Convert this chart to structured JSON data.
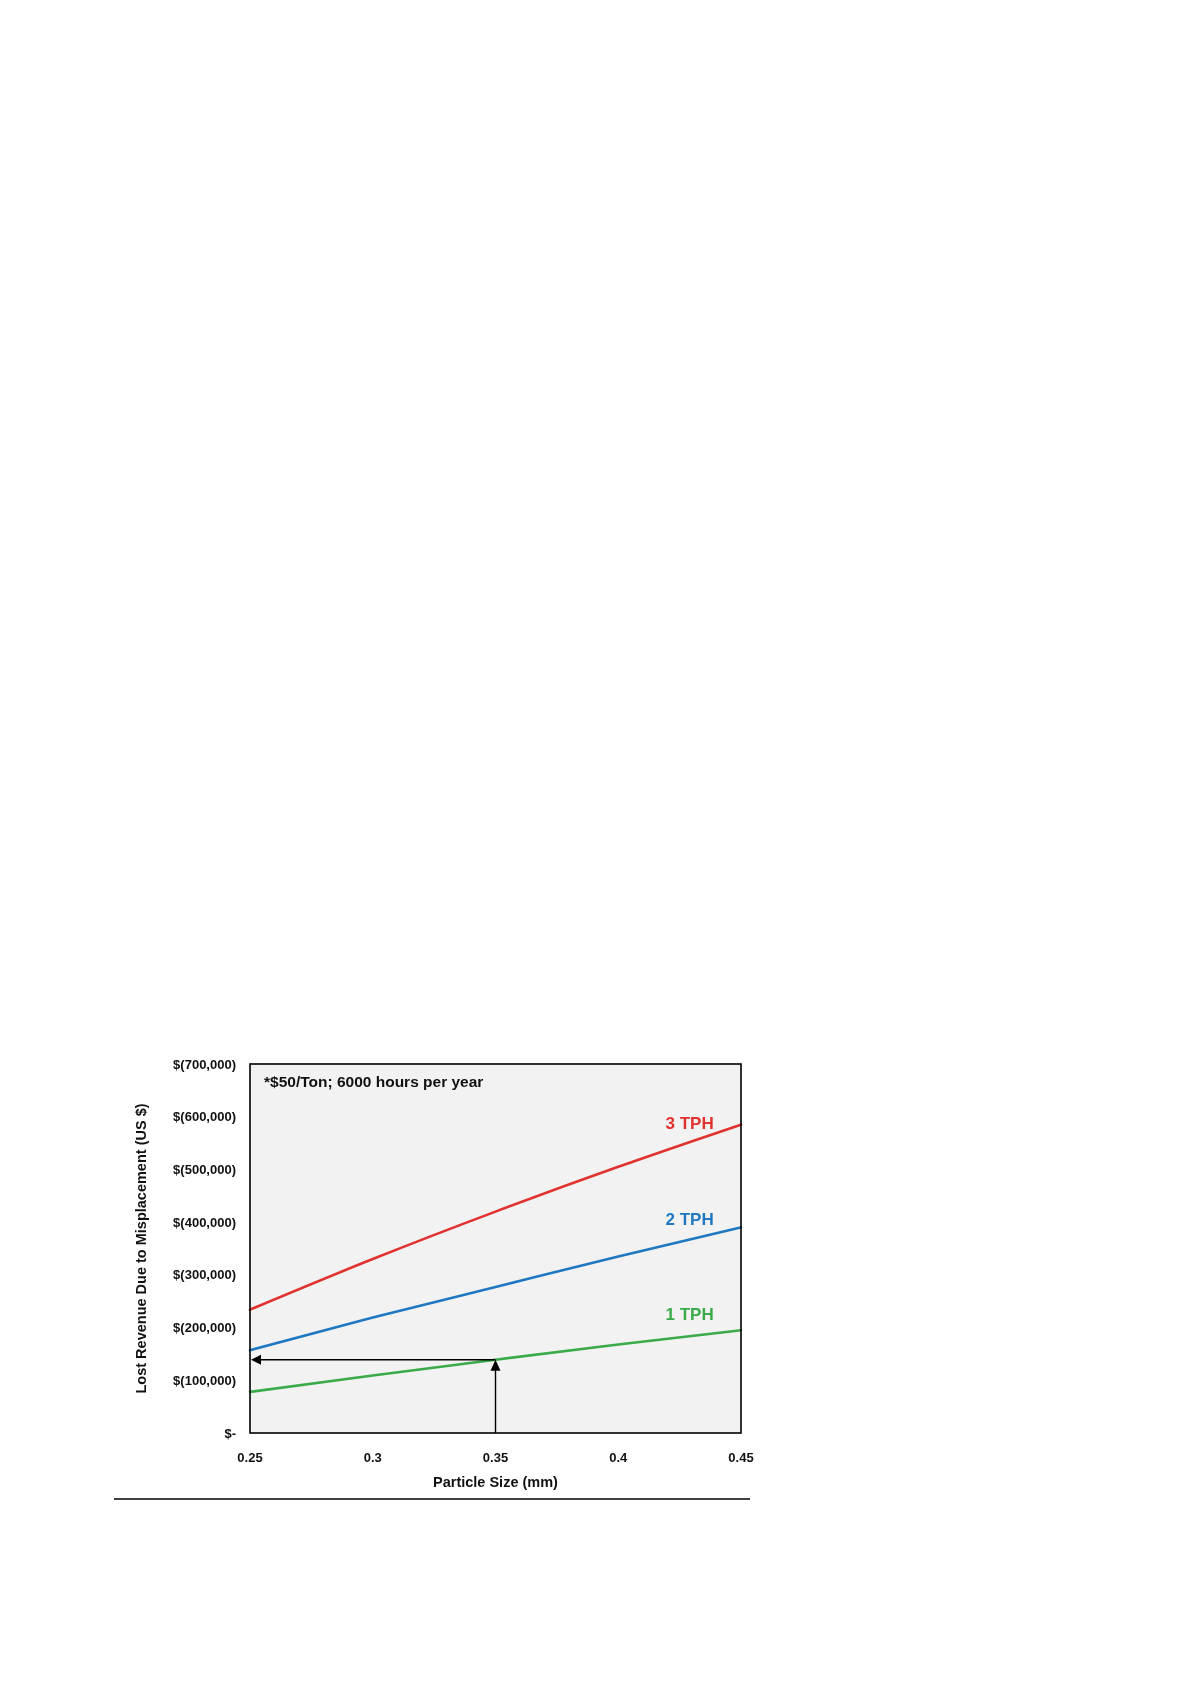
{
  "chart_data": {
    "type": "line",
    "xlabel": "Particle Size (mm)",
    "ylabel": "Lost Revenue Due to Misplacement (US $)",
    "annotations": [
      "*$50/Ton; 6000 hours per year"
    ],
    "x": [
      0.25,
      0.3,
      0.35,
      0.4,
      0.45
    ],
    "series": [
      {
        "name": "3 TPH",
        "color": "#e0322f",
        "values": [
          234000,
          330000,
          420000,
          505000,
          585000
        ]
      },
      {
        "name": "2 TPH",
        "color": "#1f78c1",
        "values": [
          157000,
          219000,
          277000,
          335000,
          390000
        ]
      },
      {
        "name": "1 TPH",
        "color": "#3aaa4a",
        "values": [
          78000,
          109000,
          139000,
          168000,
          195000
        ]
      }
    ],
    "xlim": [
      0.25,
      0.45
    ],
    "xticks": [
      0.25,
      0.3,
      0.35,
      0.4,
      0.45
    ],
    "ylim": [
      0,
      700000
    ],
    "yticks": [
      {
        "value": 0,
        "label": "$-"
      },
      {
        "value": 100000,
        "label": "$(100,000)"
      },
      {
        "value": 200000,
        "label": "$(200,000)"
      },
      {
        "value": 300000,
        "label": "$(300,000)"
      },
      {
        "value": 400000,
        "label": "$(400,000)"
      },
      {
        "value": 500000,
        "label": "$(500,000)"
      },
      {
        "value": 600000,
        "label": "$(600,000)"
      },
      {
        "value": 700000,
        "label": "$(700,000)"
      }
    ]
  }
}
